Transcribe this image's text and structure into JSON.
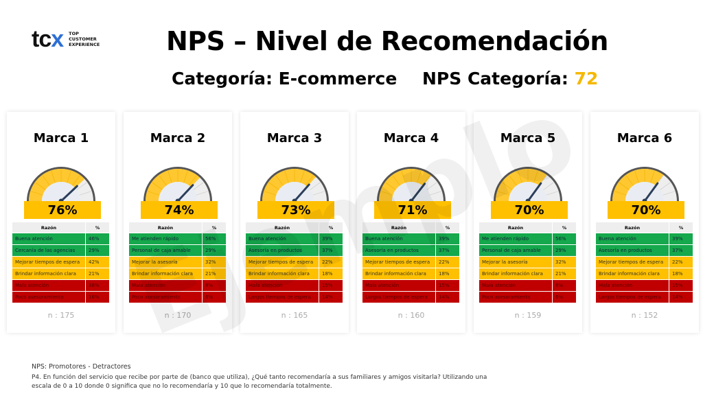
{
  "logo": {
    "mark": "tcx",
    "line1": "TOP",
    "line2": "CUSTOMER",
    "line3": "EXPERIENCE"
  },
  "title": "NPS – Nivel de Recomendación",
  "category_label": "Categoría: E-commerce",
  "nps_label": "NPS Categoría:",
  "nps_value": "72",
  "watermark": "Ejemplo",
  "header": {
    "reason": "Razón",
    "pct": "%"
  },
  "colors": {
    "green": "#15a84c",
    "yellow": "#ffc000",
    "red": "#c00000"
  },
  "brands": [
    {
      "name": "Marca 1",
      "score": 76,
      "score_label": "76%",
      "n": "n : 175",
      "rows": [
        [
          "Buena atención",
          "46%"
        ],
        [
          "Cercanía de las agencias",
          "29%"
        ],
        [
          "Mejorar tiempos de espera",
          "42%"
        ],
        [
          "Brindar información clara",
          "21%"
        ],
        [
          "Mala atención",
          "38%"
        ],
        [
          "Poco asesoramiento",
          "16%"
        ]
      ]
    },
    {
      "name": "Marca 2",
      "score": 74,
      "score_label": "74%",
      "n": "n : 170",
      "rows": [
        [
          "Me atienden rápido",
          "56%"
        ],
        [
          "Personal de caja amable",
          "29%"
        ],
        [
          "Mejorar la asesoría",
          "32%"
        ],
        [
          "Brindar información clara",
          "21%"
        ],
        [
          "Mala atención",
          "8%"
        ],
        [
          "Poco asesoramiento",
          "6%"
        ]
      ]
    },
    {
      "name": "Marca 3",
      "score": 73,
      "score_label": "73%",
      "n": "n : 165",
      "rows": [
        [
          "Buena atención",
          "39%"
        ],
        [
          "Asesoría en productos",
          "37%"
        ],
        [
          "Mejorar tiempos de espera",
          "22%"
        ],
        [
          "Brindar información clara",
          "18%"
        ],
        [
          "Mala atención",
          "15%"
        ],
        [
          "Largos tiempos de espera",
          "14%"
        ]
      ]
    },
    {
      "name": "Marca 4",
      "score": 71,
      "score_label": "71%",
      "n": "n : 160",
      "rows": [
        [
          "Buena atención",
          "39%"
        ],
        [
          "Asesoría en productos",
          "37%"
        ],
        [
          "Mejorar tiempos de espera",
          "22%"
        ],
        [
          "Brindar información clara",
          "18%"
        ],
        [
          "Mala atención",
          "15%"
        ],
        [
          "Largos tiempos de espera",
          "14%"
        ]
      ]
    },
    {
      "name": "Marca 5",
      "score": 70,
      "score_label": "70%",
      "n": "n : 159",
      "rows": [
        [
          "Me atienden rápido",
          "56%"
        ],
        [
          "Personal de caja amable",
          "29%"
        ],
        [
          "Mejorar la asesoría",
          "32%"
        ],
        [
          "Brindar información clara",
          "21%"
        ],
        [
          "Mala atención",
          "8%"
        ],
        [
          "Poco asesoramiento",
          "6%"
        ]
      ]
    },
    {
      "name": "Marca 6",
      "score": 70,
      "score_label": "70%",
      "n": "n : 152",
      "rows": [
        [
          "Buena atención",
          "39%"
        ],
        [
          "Asesoría en productos",
          "37%"
        ],
        [
          "Mejorar tiempos de espera",
          "22%"
        ],
        [
          "Brindar información clara",
          "18%"
        ],
        [
          "Mala atención",
          "15%"
        ],
        [
          "Largos tiempos de espera",
          "14%"
        ]
      ]
    }
  ],
  "footer": {
    "line1": "NPS: Promotores - Detractores",
    "line2": "P4. En función del servicio que recibe por parte de (banco que utiliza), ¿Qué tanto recomendaría a sus familiares y amigos visitarla? Utilizando una",
    "line3": "escala de 0 a 10 donde 0 significa que no lo recomendaría y 10 que lo recomendaría totalmente."
  }
}
